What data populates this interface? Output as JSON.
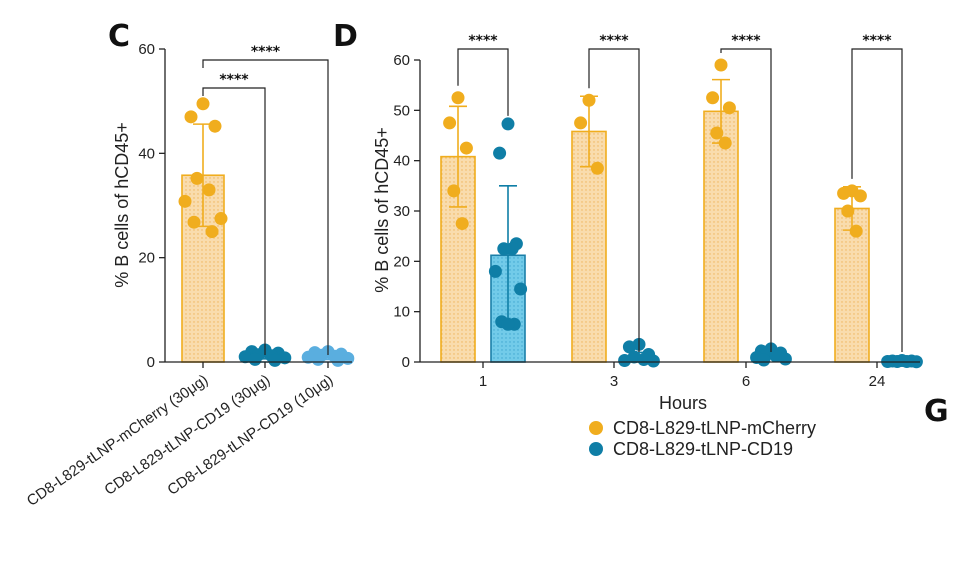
{
  "panels": {
    "c": "C",
    "d": "D",
    "g": "G"
  },
  "colors": {
    "orange": "#f0ad1e",
    "orange_fill": "#f8d9a6",
    "blue_dark": "#0f7ea6",
    "blue_fill": "#6cc8e8",
    "blue_light": "#5aaedf"
  },
  "chart_data": [
    {
      "panel": "C",
      "type": "bar",
      "ylabel": "% B cells of hCD45+",
      "ylim": [
        0,
        60
      ],
      "yticks": [
        "0",
        "20",
        "40",
        "60"
      ],
      "categories": [
        "CD8-L829-tLNP-mCherry (30μg)",
        "CD8-L829-tLNP-CD19 (30μg)",
        "CD8-L829-tLNP-CD19 (10μg)"
      ],
      "means": [
        35.8,
        1.2,
        1.0
      ],
      "sd": [
        9.8,
        0.6,
        0.5
      ],
      "points": [
        [
          49.5,
          47,
          45.2,
          35.2,
          33,
          30.8,
          27.5,
          26.8,
          25
        ],
        [
          2.3,
          2,
          1.7,
          1.4,
          1.2,
          1,
          0.8,
          0.5,
          0.3
        ],
        [
          2.0,
          1.8,
          1.5,
          1.3,
          1.1,
          0.9,
          0.7,
          0.5,
          0.3
        ]
      ],
      "colors": [
        "#f0ad1e",
        "#0f7ea6",
        "#5aaedf"
      ],
      "significance": [
        {
          "from": 0,
          "to": 1,
          "label": "****"
        },
        {
          "from": 0,
          "to": 2,
          "label": "****"
        }
      ]
    },
    {
      "panel": "D",
      "type": "bar",
      "xlabel": "Hours",
      "ylabel": "% B cells of hCD45+",
      "ylim": [
        0,
        60
      ],
      "yticks": [
        "0",
        "10",
        "20",
        "30",
        "40",
        "50",
        "60"
      ],
      "categories": [
        "1",
        "3",
        "6",
        "24"
      ],
      "series": [
        {
          "name": "CD8-L829-tLNP-mCherry",
          "means": [
            40.8,
            45.8,
            49.8,
            30.5
          ],
          "sd": [
            10.0,
            7.0,
            6.3,
            4.3
          ],
          "points": [
            [
              52.5,
              47.5,
              42.5,
              34,
              27.5
            ],
            [
              52,
              47.5,
              38.5
            ],
            [
              59,
              52.5,
              50.5,
              45.5,
              43.5
            ],
            [
              34,
              33.5,
              33,
              30,
              26
            ]
          ]
        },
        {
          "name": "CD8-L829-tLNP-CD19",
          "means": [
            21.2,
            0.9,
            1.5,
            0.2
          ],
          "sd": [
            13.8,
            1.0,
            0.7,
            0.15
          ],
          "points": [
            [
              47.3,
              41.5,
              23.5,
              22.5,
              22.5,
              18,
              14.5,
              8,
              7.5,
              7.5
            ],
            [
              3.5,
              3,
              1.5,
              1,
              0.5,
              0.3,
              0.2
            ],
            [
              2.6,
              2.2,
              1.8,
              1.5,
              1.2,
              0.9,
              0.6,
              0.4
            ],
            [
              0.3,
              0.2,
              0.2,
              0.1,
              0.1,
              0.1,
              0.05
            ]
          ]
        }
      ],
      "significance": [
        {
          "category": 0,
          "label": "****"
        },
        {
          "category": 1,
          "label": "****"
        },
        {
          "category": 2,
          "label": "****"
        },
        {
          "category": 3,
          "label": "****"
        }
      ],
      "legend": [
        "CD8-L829-tLNP-mCherry",
        "CD8-L829-tLNP-CD19"
      ]
    }
  ]
}
